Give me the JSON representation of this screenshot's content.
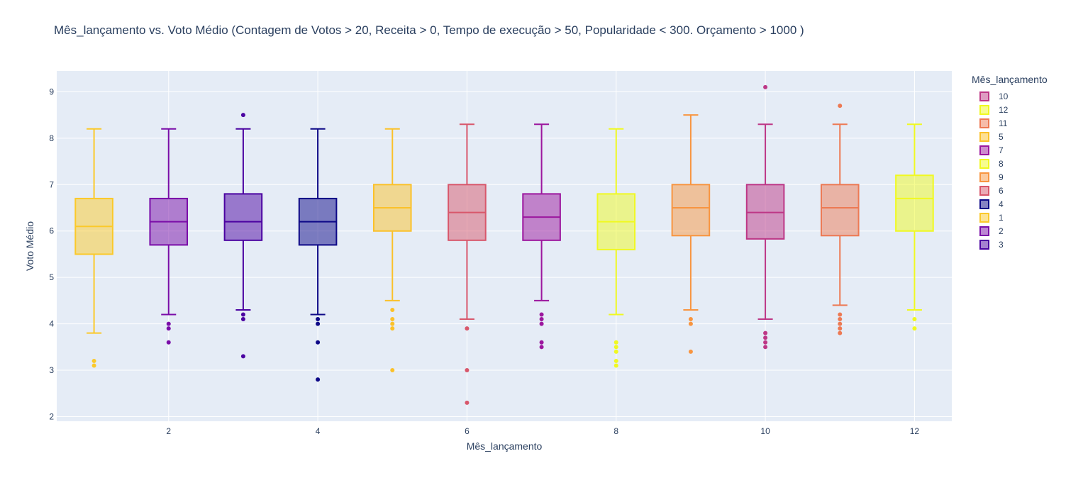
{
  "chart_data": {
    "type": "box",
    "title": "Mês_lançamento vs. Voto Médio (Contagem de Votos > 20, Receita > 0, Tempo de execução > 50, Popularidade < 300. Orçamento > 1000 )",
    "xlabel": "Mês_lançamento",
    "ylabel": "Voto Médio",
    "xlim": [
      0.5,
      12.5
    ],
    "ylim": [
      1.9,
      9.45
    ],
    "x_ticks": [
      2,
      4,
      6,
      8,
      10,
      12
    ],
    "y_ticks": [
      2,
      3,
      4,
      5,
      6,
      7,
      8,
      9
    ],
    "grid": true,
    "background": "#e5ecf6",
    "legend": {
      "title": "Mês_lançamento",
      "placement": "right",
      "order": [
        10,
        12,
        11,
        5,
        7,
        8,
        9,
        6,
        4,
        1,
        2,
        3
      ]
    },
    "series": [
      {
        "name": "1",
        "x": 1,
        "color": "#fbc92a",
        "q1": 5.5,
        "median": 6.1,
        "q3": 6.7,
        "lowerfence": 3.8,
        "upperfence": 8.2,
        "outliers": [
          3.2,
          3.1
        ]
      },
      {
        "name": "2",
        "x": 2,
        "color": "#7a0da8",
        "q1": 5.7,
        "median": 6.2,
        "q3": 6.7,
        "lowerfence": 4.2,
        "upperfence": 8.2,
        "outliers": [
          4.0,
          3.9,
          3.6
        ]
      },
      {
        "name": "3",
        "x": 3,
        "color": "#4b03a1",
        "q1": 5.8,
        "median": 6.2,
        "q3": 6.8,
        "lowerfence": 4.3,
        "upperfence": 8.2,
        "outliers": [
          8.5,
          4.2,
          4.1,
          3.3
        ]
      },
      {
        "name": "4",
        "x": 4,
        "color": "#0d0887",
        "q1": 5.7,
        "median": 6.2,
        "q3": 6.7,
        "lowerfence": 4.2,
        "upperfence": 8.2,
        "outliers": [
          4.1,
          4.0,
          3.6,
          2.8
        ]
      },
      {
        "name": "5",
        "x": 5,
        "color": "#fbc12a",
        "q1": 6.0,
        "median": 6.5,
        "q3": 7.0,
        "lowerfence": 4.5,
        "upperfence": 8.2,
        "outliers": [
          4.3,
          4.1,
          4.0,
          3.9,
          3.0
        ]
      },
      {
        "name": "6",
        "x": 6,
        "color": "#d8576b",
        "q1": 5.8,
        "median": 6.4,
        "q3": 7.0,
        "lowerfence": 4.1,
        "upperfence": 8.3,
        "outliers": [
          3.9,
          3.0,
          2.3
        ]
      },
      {
        "name": "7",
        "x": 7,
        "color": "#9c179e",
        "q1": 5.8,
        "median": 6.3,
        "q3": 6.8,
        "lowerfence": 4.5,
        "upperfence": 8.3,
        "outliers": [
          4.2,
          4.1,
          4.0,
          3.6,
          3.5
        ]
      },
      {
        "name": "8",
        "x": 8,
        "color": "#f0f921",
        "q1": 5.6,
        "median": 6.2,
        "q3": 6.8,
        "lowerfence": 4.2,
        "upperfence": 8.2,
        "outliers": [
          3.6,
          3.5,
          3.4,
          3.2,
          3.1
        ]
      },
      {
        "name": "9",
        "x": 9,
        "color": "#f89540",
        "q1": 5.9,
        "median": 6.5,
        "q3": 7.0,
        "lowerfence": 4.3,
        "upperfence": 8.5,
        "outliers": [
          4.1,
          4.0,
          3.4
        ]
      },
      {
        "name": "10",
        "x": 10,
        "color": "#bd3786",
        "q1": 5.83,
        "median": 6.4,
        "q3": 7.0,
        "lowerfence": 4.1,
        "upperfence": 8.3,
        "outliers": [
          9.1,
          3.8,
          3.7,
          3.6,
          3.5
        ]
      },
      {
        "name": "11",
        "x": 11,
        "color": "#ed7953",
        "q1": 5.9,
        "median": 6.5,
        "q3": 7.0,
        "lowerfence": 4.4,
        "upperfence": 8.3,
        "outliers": [
          8.7,
          4.2,
          4.1,
          4.0,
          3.9,
          3.8
        ]
      },
      {
        "name": "12",
        "x": 12,
        "color": "#f0f921",
        "q1": 6.0,
        "median": 6.7,
        "q3": 7.2,
        "lowerfence": 4.3,
        "upperfence": 8.3,
        "outliers": [
          4.1,
          3.9
        ]
      }
    ]
  }
}
